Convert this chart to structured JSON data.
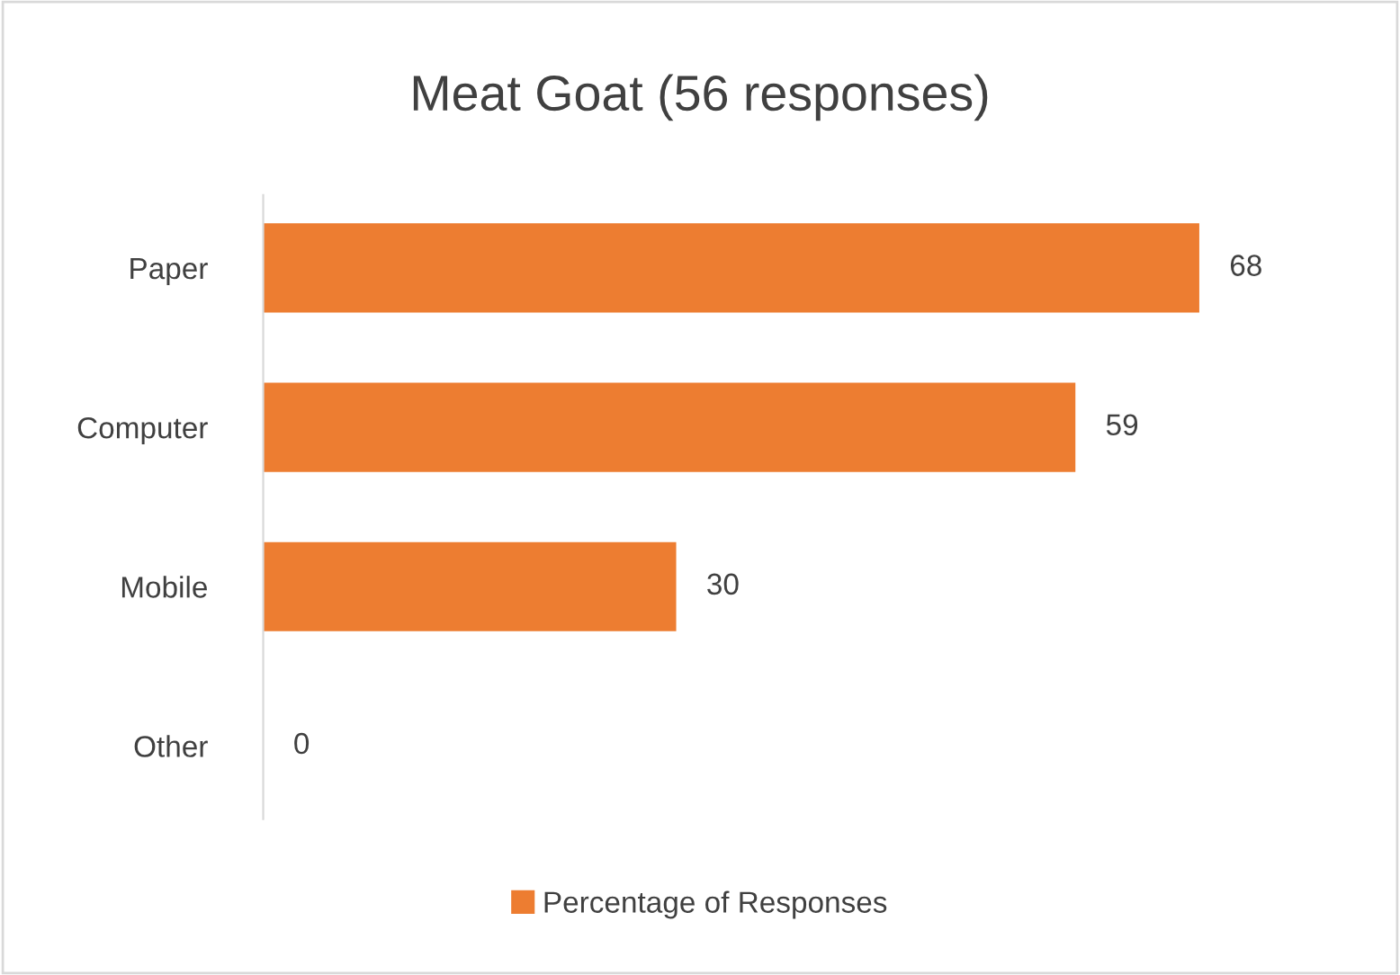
{
  "chart_data": {
    "type": "bar",
    "orientation": "horizontal",
    "title": "Meat Goat (56 responses)",
    "categories": [
      "Paper",
      "Computer",
      "Mobile",
      "Other"
    ],
    "series": [
      {
        "name": "Percentage of Responses",
        "color": "#ed7d31",
        "values": [
          68,
          59,
          30,
          0
        ]
      }
    ],
    "data_labels": true,
    "legend": "bottom",
    "grid": false,
    "tick_labels": "y"
  }
}
